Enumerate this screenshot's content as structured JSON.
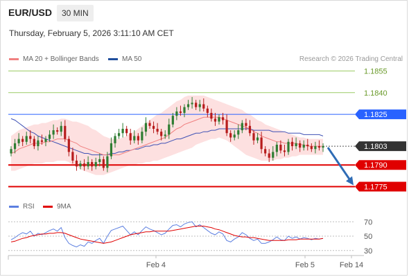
{
  "header": {
    "pair": "EUR/USD",
    "timeframe": "30 MIN",
    "datetime": "Thursday, February 5, 2026 3:11:10 AM CET"
  },
  "legend": {
    "ma20_label": "MA 20 + Bollinger Bands",
    "ma50_label": "MA 50",
    "rsi_label": "RSI",
    "ma9_label": "9MA",
    "credit": "Research © 2026 Trading Central"
  },
  "colors": {
    "bull": "#2e7d32",
    "bear": "#b71c1c",
    "ma20": "#f08080",
    "bollinger_fill": "#fde0e0",
    "ma50": "#3f51b5",
    "target_line": "#9ccc65",
    "pivot_line": "#2962ff",
    "support_line": "#e00000",
    "price_label": "#333333",
    "rsi": "#5c7fe0",
    "rsi_ma": "#e00000",
    "arrow": "#2f6cb5"
  },
  "chart_data": [
    {
      "type": "candlestick",
      "title": "EUR/USD 30 MIN",
      "x_tick_labels": [
        "Feb 4",
        "Feb 5",
        "Feb 14"
      ],
      "ylim": [
        1.177,
        1.186
      ],
      "levels": [
        {
          "label": "1.1855",
          "value": 1.1855,
          "kind": "target"
        },
        {
          "label": "1.1840",
          "value": 1.184,
          "kind": "target"
        },
        {
          "label": "1.1825",
          "value": 1.1825,
          "kind": "pivot"
        },
        {
          "label": "1.1803",
          "value": 1.1803,
          "kind": "last"
        },
        {
          "label": "1.1790",
          "value": 1.179,
          "kind": "support"
        },
        {
          "label": "1.1775",
          "value": 1.1775,
          "kind": "support"
        }
      ],
      "projection": {
        "from": 1.1803,
        "to": 1.1775,
        "direction": "down"
      },
      "close": [
        1.1801,
        1.1805,
        1.1808,
        1.1806,
        1.181,
        1.1808,
        1.1803,
        1.1807,
        1.1806,
        1.1808,
        1.1811,
        1.1814,
        1.1813,
        1.1817,
        1.1808,
        1.1799,
        1.1793,
        1.1789,
        1.1791,
        1.1789,
        1.1792,
        1.1789,
        1.1792,
        1.1794,
        1.1788,
        1.1796,
        1.1805,
        1.181,
        1.1812,
        1.1815,
        1.1812,
        1.1807,
        1.181,
        1.1807,
        1.1813,
        1.1819,
        1.1817,
        1.1815,
        1.1813,
        1.181,
        1.1811,
        1.1818,
        1.1824,
        1.1827,
        1.1826,
        1.183,
        1.1832,
        1.1833,
        1.183,
        1.1832,
        1.1829,
        1.1826,
        1.1822,
        1.182,
        1.1823,
        1.1821,
        1.1812,
        1.1809,
        1.1811,
        1.1814,
        1.1819,
        1.1817,
        1.1812,
        1.1807,
        1.1809,
        1.1801,
        1.1798,
        1.1795,
        1.1799,
        1.1804,
        1.18,
        1.1799,
        1.1806,
        1.1803,
        1.1805,
        1.1802,
        1.1804,
        1.1803,
        1.1801,
        1.1803,
        1.1802,
        1.1803
      ],
      "ma20": [
        1.1798,
        1.1799,
        1.1801,
        1.1802,
        1.1803,
        1.1804,
        1.1805,
        1.1805,
        1.1805,
        1.1806,
        1.1806,
        1.1807,
        1.1808,
        1.1808,
        1.1808,
        1.1807,
        1.1806,
        1.1805,
        1.1803,
        1.1802,
        1.1801,
        1.18,
        1.1799,
        1.1798,
        1.1797,
        1.1797,
        1.1797,
        1.1797,
        1.1797,
        1.1798,
        1.1799,
        1.18,
        1.1801,
        1.1802,
        1.1803,
        1.1804,
        1.1805,
        1.1806,
        1.1807,
        1.1808,
        1.1809,
        1.1811,
        1.1813,
        1.1815,
        1.1816,
        1.1818,
        1.1819,
        1.182,
        1.1821,
        1.1822,
        1.1823,
        1.1823,
        1.1823,
        1.1823,
        1.1823,
        1.1822,
        1.1821,
        1.182,
        1.1819,
        1.1818,
        1.1817,
        1.1816,
        1.1815,
        1.1813,
        1.1812,
        1.181,
        1.1809,
        1.1808,
        1.1807,
        1.1806,
        1.1806,
        1.1805,
        1.1805,
        1.1805,
        1.1805,
        1.1804,
        1.1804,
        1.1803,
        1.1803,
        1.1803,
        1.1803,
        1.1803
      ],
      "bollinger_upper": [
        1.181,
        1.1812,
        1.1814,
        1.1815,
        1.1816,
        1.1817,
        1.1818,
        1.1818,
        1.1819,
        1.1819,
        1.182,
        1.1821,
        1.1821,
        1.1822,
        1.1822,
        1.1821,
        1.182,
        1.182,
        1.1819,
        1.1818,
        1.1817,
        1.1815,
        1.1814,
        1.1812,
        1.181,
        1.1809,
        1.1808,
        1.1808,
        1.1808,
        1.1809,
        1.181,
        1.1812,
        1.1813,
        1.1815,
        1.1817,
        1.1819,
        1.1821,
        1.1823,
        1.1825,
        1.1826,
        1.1828,
        1.183,
        1.1832,
        1.1834,
        1.1835,
        1.1837,
        1.1838,
        1.1838,
        1.1838,
        1.1838,
        1.1838,
        1.1837,
        1.1836,
        1.1835,
        1.1834,
        1.1833,
        1.1832,
        1.1831,
        1.183,
        1.1829,
        1.1828,
        1.1826,
        1.1825,
        1.1823,
        1.1821,
        1.182,
        1.1818,
        1.1817,
        1.1816,
        1.1815,
        1.1814,
        1.1813,
        1.1812,
        1.1811,
        1.181,
        1.1809,
        1.1809,
        1.1808,
        1.1808,
        1.1808,
        1.1808,
        1.1808
      ],
      "bollinger_lower": [
        1.1786,
        1.1786,
        1.1787,
        1.1788,
        1.1789,
        1.179,
        1.1791,
        1.1791,
        1.1791,
        1.1792,
        1.1792,
        1.1792,
        1.1793,
        1.1793,
        1.1793,
        1.1792,
        1.179,
        1.1789,
        1.1787,
        1.1786,
        1.1785,
        1.1784,
        1.1783,
        1.1783,
        1.1783,
        1.1784,
        1.1785,
        1.1786,
        1.1787,
        1.1788,
        1.1789,
        1.179,
        1.179,
        1.1791,
        1.1791,
        1.1792,
        1.1792,
        1.1793,
        1.1793,
        1.1794,
        1.1795,
        1.1796,
        1.1797,
        1.1798,
        1.1799,
        1.18,
        1.1801,
        1.1802,
        1.1804,
        1.1805,
        1.1806,
        1.1807,
        1.1808,
        1.1808,
        1.1809,
        1.1808,
        1.1807,
        1.1805,
        1.1803,
        1.1801,
        1.1799,
        1.1797,
        1.1796,
        1.1795,
        1.1794,
        1.1793,
        1.1793,
        1.1793,
        1.1793,
        1.1794,
        1.1794,
        1.1795,
        1.1795,
        1.1796,
        1.1796,
        1.1797,
        1.1797,
        1.1797,
        1.1797,
        1.1797,
        1.1797,
        1.1797
      ],
      "ma50": [
        1.1822,
        1.1821,
        1.1819,
        1.1817,
        1.1815,
        1.1813,
        1.1812,
        1.181,
        1.1809,
        1.1808,
        1.1807,
        1.1806,
        1.1805,
        1.1804,
        1.1803,
        1.1802,
        1.1801,
        1.18,
        1.1799,
        1.1798,
        1.1798,
        1.1797,
        1.1797,
        1.1797,
        1.1797,
        1.1797,
        1.1798,
        1.1798,
        1.1799,
        1.1799,
        1.18,
        1.18,
        1.1801,
        1.1801,
        1.1802,
        1.1803,
        1.1803,
        1.1804,
        1.1804,
        1.1805,
        1.1805,
        1.1806,
        1.1807,
        1.1808,
        1.1808,
        1.1809,
        1.181,
        1.1811,
        1.1812,
        1.1812,
        1.1813,
        1.1813,
        1.1814,
        1.1814,
        1.1815,
        1.1815,
        1.1815,
        1.1815,
        1.1815,
        1.1815,
        1.1815,
        1.1815,
        1.1815,
        1.1814,
        1.1814,
        1.1814,
        1.1814,
        1.1814,
        1.1813,
        1.1813,
        1.1813,
        1.1813,
        1.1812,
        1.1812,
        1.1812,
        1.1812,
        1.1811,
        1.1811,
        1.1811,
        1.1811,
        1.1811,
        1.181
      ]
    },
    {
      "type": "line",
      "legend": [
        "RSI",
        "9MA"
      ],
      "y_tick_labels": [
        "70",
        "50",
        "30"
      ],
      "ylim": [
        25,
        78
      ],
      "series": [
        {
          "name": "RSI",
          "values": [
            45,
            48,
            52,
            55,
            53,
            57,
            50,
            54,
            52,
            55,
            58,
            60,
            57,
            62,
            48,
            40,
            37,
            35,
            38,
            36,
            42,
            40,
            44,
            47,
            40,
            50,
            58,
            60,
            62,
            64,
            58,
            52,
            56,
            52,
            58,
            63,
            60,
            58,
            55,
            52,
            54,
            60,
            65,
            66,
            63,
            67,
            69,
            70,
            63,
            66,
            62,
            58,
            54,
            52,
            56,
            53,
            44,
            42,
            46,
            49,
            55,
            52,
            47,
            44,
            46,
            40,
            40,
            42,
            45,
            49,
            45,
            44,
            50,
            47,
            49,
            46,
            48,
            47,
            45,
            47,
            46,
            47
          ]
        },
        {
          "name": "9MA",
          "values": [
            42,
            43,
            45,
            47,
            48,
            50,
            51,
            52,
            53,
            53,
            54,
            54,
            55,
            55,
            54,
            52,
            50,
            48,
            46,
            45,
            44,
            43,
            42,
            41,
            40,
            41,
            42,
            44,
            46,
            48,
            50,
            52,
            53,
            54,
            55,
            56,
            56,
            57,
            57,
            57,
            57,
            57,
            58,
            59,
            60,
            61,
            62,
            63,
            64,
            64,
            64,
            63,
            62,
            60,
            59,
            57,
            55,
            53,
            51,
            50,
            49,
            49,
            48,
            48,
            47,
            46,
            45,
            44,
            44,
            44,
            44,
            44,
            45,
            45,
            45,
            46,
            46,
            46,
            46,
            46,
            46,
            47
          ]
        }
      ]
    }
  ]
}
